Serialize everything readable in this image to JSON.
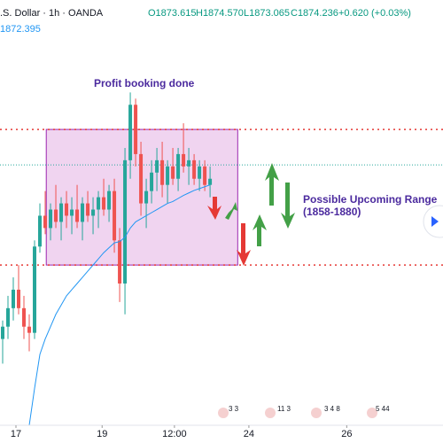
{
  "header": {
    "symbol": ".S. Dollar · 1h · OANDA",
    "open": "O1873.615",
    "high": "H1874.570",
    "low": "L1873.065",
    "close": "C1874.236",
    "change": "+0.620 (+0.03%)",
    "indicator": "1872.395"
  },
  "events": [
    "3 3",
    "11 3",
    "3 4 8",
    "5 44"
  ],
  "chart_data": {
    "type": "candlestick",
    "annotations": [
      "Profit booking done",
      "Possible Upcoming Range",
      "(1858-1880)"
    ],
    "xlim": [
      -0.5,
      82.8
    ],
    "ylim": [
      1832,
      1901
    ],
    "xticks": [
      {
        "value": 2.5,
        "label": "17"
      },
      {
        "value": 18.7,
        "label": "19"
      },
      {
        "value": 32.3,
        "label": "12:00"
      },
      {
        "value": 46.3,
        "label": "24"
      },
      {
        "value": 64.7,
        "label": "26"
      }
    ],
    "up_color": "#26a69a",
    "down_color": "#ef5350",
    "candles": [
      [
        1846,
        1849,
        1842,
        1848
      ],
      [
        1848,
        1853,
        1846,
        1851
      ],
      [
        1851,
        1856,
        1849,
        1854
      ],
      [
        1854,
        1858,
        1850,
        1851
      ],
      [
        1851,
        1853,
        1846,
        1848
      ],
      [
        1848,
        1850,
        1844,
        1847
      ],
      [
        1847,
        1862,
        1846,
        1861
      ],
      [
        1861,
        1868,
        1860,
        1866
      ],
      [
        1866,
        1870,
        1863,
        1864
      ],
      [
        1864,
        1868,
        1862,
        1867
      ],
      [
        1867,
        1871,
        1864,
        1865
      ],
      [
        1865,
        1869,
        1862,
        1868
      ],
      [
        1868,
        1870,
        1864,
        1866
      ],
      [
        1866,
        1869,
        1863,
        1867
      ],
      [
        1867,
        1871,
        1864,
        1865
      ],
      [
        1865,
        1869,
        1862,
        1868
      ],
      [
        1868,
        1870,
        1865,
        1866
      ],
      [
        1866,
        1869,
        1863,
        1867
      ],
      [
        1867,
        1870,
        1864,
        1869
      ],
      [
        1869,
        1872,
        1866,
        1867
      ],
      [
        1867,
        1871,
        1865,
        1870
      ],
      [
        1870,
        1872,
        1860,
        1862
      ],
      [
        1862,
        1864,
        1852,
        1855
      ],
      [
        1855,
        1877,
        1850,
        1875
      ],
      [
        1875,
        1886,
        1872,
        1884
      ],
      [
        1884,
        1885,
        1874,
        1876
      ],
      [
        1876,
        1878,
        1866,
        1868
      ],
      [
        1868,
        1872,
        1864,
        1870
      ],
      [
        1870,
        1875,
        1868,
        1873
      ],
      [
        1873,
        1877,
        1870,
        1875
      ],
      [
        1875,
        1878,
        1869,
        1871
      ],
      [
        1871,
        1875,
        1868,
        1874
      ],
      [
        1874,
        1877,
        1871,
        1872
      ],
      [
        1872,
        1877,
        1870,
        1876
      ],
      [
        1876,
        1881,
        1873,
        1874
      ],
      [
        1874,
        1877,
        1871,
        1875
      ],
      [
        1875,
        1876,
        1871,
        1872
      ],
      [
        1872,
        1875,
        1870,
        1874
      ],
      [
        1874,
        1875,
        1870,
        1871
      ],
      [
        1871,
        1874,
        1869,
        1872
      ]
    ],
    "ma": {
      "color": "#2196f3",
      "values": [
        null,
        null,
        null,
        null,
        null,
        1832,
        1838,
        1843.5,
        1846,
        1848,
        1850,
        1851.5,
        1853,
        1854,
        1855,
        1856,
        1857,
        1858,
        1859,
        1860,
        1860.8,
        1861.6,
        1861.8,
        1862.5,
        1864,
        1865,
        1865.5,
        1866,
        1866.5,
        1867,
        1867.5,
        1868,
        1868.3,
        1868.8,
        1869.3,
        1869.7,
        1870.1,
        1870.4,
        1870.7,
        1871
      ]
    },
    "levels": [
      {
        "value": 1880,
        "color": "#e53935"
      },
      {
        "value": 1858,
        "color": "#e53935"
      },
      {
        "value": 1874.236,
        "color": "#26a69a"
      }
    ],
    "range_box": {
      "x": [
        8.2,
        44.2
      ],
      "y": [
        1858,
        1880
      ],
      "color": "#dda0dd"
    }
  }
}
